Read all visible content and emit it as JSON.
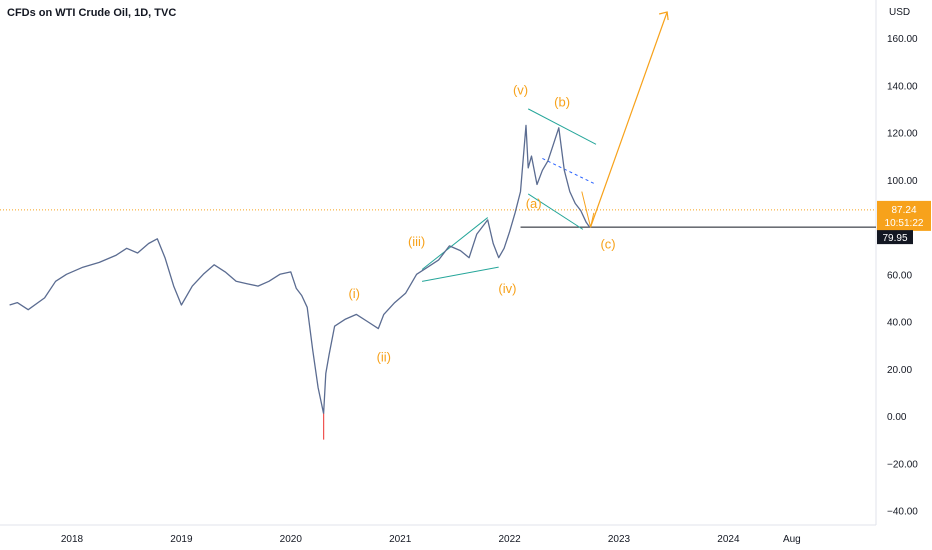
{
  "chart_data": {
    "type": "line",
    "title": "CFDs on WTI Crude Oil, 1D, TVC",
    "currency": "USD",
    "y_ticks": [
      160,
      140,
      120,
      100,
      80,
      60,
      40,
      20,
      0,
      -20,
      -40
    ],
    "y_tick_labels": [
      "160.00",
      "140.00",
      "120.00",
      "100.00",
      "",
      "60.00",
      "40.00",
      "20.00",
      "0.00",
      "−20.00",
      "−40.00"
    ],
    "x_ticks": [
      2018,
      2019,
      2020,
      2021,
      2022,
      2023,
      2024,
      2024.58
    ],
    "x_tick_labels": [
      "2018",
      "2019",
      "2020",
      "2021",
      "2022",
      "2023",
      "2024",
      "Aug"
    ],
    "ylim": [
      -44,
      182
    ],
    "xlim": [
      2017.43,
      2025.3
    ],
    "grid": false,
    "price_series": {
      "x": [
        2017.43,
        2017.5,
        2017.6,
        2017.75,
        2017.85,
        2017.95,
        2018.1,
        2018.25,
        2018.4,
        2018.5,
        2018.6,
        2018.7,
        2018.78,
        2018.85,
        2018.93,
        2019.0,
        2019.1,
        2019.2,
        2019.3,
        2019.4,
        2019.5,
        2019.6,
        2019.7,
        2019.8,
        2019.9,
        2020.0,
        2020.05,
        2020.1,
        2020.15,
        2020.2,
        2020.25,
        2020.3,
        2020.32,
        2020.35,
        2020.4,
        2020.5,
        2020.6,
        2020.7,
        2020.8,
        2020.85,
        2020.95,
        2021.05,
        2021.15,
        2021.25,
        2021.35,
        2021.45,
        2021.55,
        2021.63,
        2021.7,
        2021.8,
        2021.85,
        2021.9,
        2021.95,
        2022.0,
        2022.05,
        2022.1,
        2022.15,
        2022.17,
        2022.2,
        2022.25,
        2022.3,
        2022.35,
        2022.4,
        2022.45,
        2022.5,
        2022.55,
        2022.6,
        2022.65,
        2022.7,
        2022.73
      ],
      "y": [
        47,
        48,
        45,
        50,
        57,
        60,
        63,
        65,
        68,
        71,
        69,
        73,
        75,
        67,
        55,
        47,
        55,
        60,
        64,
        61,
        57,
        56,
        55,
        57,
        60,
        61,
        54,
        51,
        46,
        28,
        12,
        1,
        18,
        26,
        38,
        41,
        43,
        40,
        37,
        43,
        48,
        52,
        60,
        63,
        66,
        72,
        70,
        67,
        77,
        83,
        73,
        67,
        71,
        78,
        86,
        95,
        123,
        105,
        110,
        98,
        104,
        108,
        115,
        122,
        104,
        95,
        90,
        87,
        82,
        80
      ]
    },
    "wave_labels": [
      "(i)",
      "(ii)",
      "(iii)",
      "(iv)",
      "(v)",
      "(a)",
      "(b)",
      "(c)"
    ],
    "last_price": "87.24",
    "countdown": "10:51:22",
    "level_line_value": 79.95,
    "level_label": "79.95",
    "projection": {
      "from": [
        2022.74,
        79.95
      ],
      "to": [
        2023.44,
        171
      ]
    }
  },
  "colors": {
    "accent_orange": "#f7a21b",
    "price_line": "#5b6c91",
    "candle_down": "#ef5350",
    "channel_teal": "#26a69a",
    "dashed_blue": "#2962ff",
    "level_line": "#131722"
  }
}
